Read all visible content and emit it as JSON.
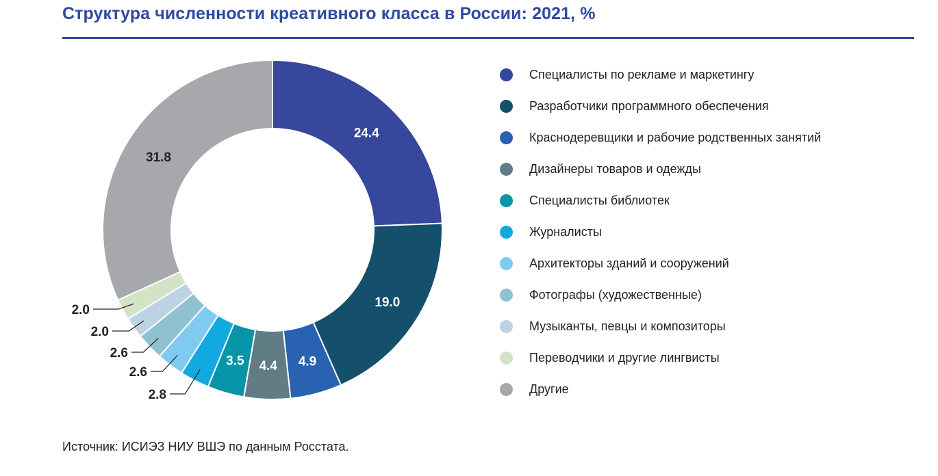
{
  "title": "Структура численности креативного класса в России: 2021, %",
  "source": "Источник: ИСИЭЗ НИУ ВШЭ по данным Росстата.",
  "chart_data": {
    "type": "pie",
    "variant": "donut",
    "title": "Структура численности креативного класса в России: 2021, %",
    "legend_position": "right",
    "categories": [
      "Специалисты по рекламе и маркетингу",
      "Разработчики программного обеспечения",
      "Краснодеревщики и рабочие родственных занятий",
      "Дизайнеры товаров и одежды",
      "Специалисты библиотек",
      "Журналисты",
      "Архитекторы зданий и сооружений",
      "Фотографы (художественные)",
      "Музыканты, певцы и композиторы",
      "Переводчики и другие лингвисты",
      "Другие"
    ],
    "values": [
      24.4,
      19.0,
      4.9,
      4.4,
      3.5,
      2.8,
      2.6,
      2.6,
      2.0,
      2.0,
      31.8
    ],
    "value_labels": [
      "24.4",
      "19.0",
      "4.9",
      "4.4",
      "3.5",
      "2.8",
      "2.6",
      "2.6",
      "2.0",
      "2.0",
      "31.8"
    ],
    "colors": [
      "#37479c",
      "#144f6b",
      "#2862b0",
      "#607d86",
      "#0594a8",
      "#12a9e1",
      "#7fcbef",
      "#90c1d1",
      "#bcd3e3",
      "#d3e3c6",
      "#a6a8ab"
    ],
    "label_colors": [
      "#ffffff",
      "#ffffff",
      "#ffffff",
      "#ffffff",
      "#ffffff",
      "#222222",
      "#222222",
      "#222222",
      "#222222",
      "#222222",
      "#222222"
    ],
    "outside_labels": [
      false,
      false,
      false,
      false,
      false,
      true,
      true,
      true,
      true,
      true,
      false
    ]
  }
}
